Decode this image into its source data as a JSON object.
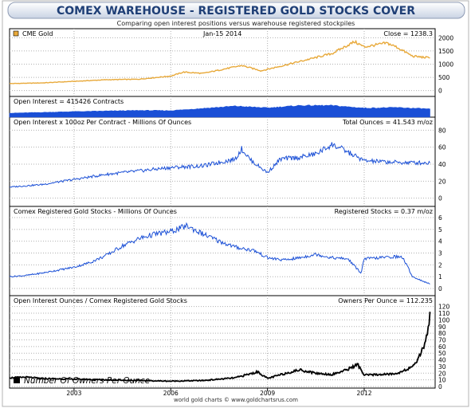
{
  "title": "COMEX WAREHOUSE - REGISTERED GOLD STOCKS COVER",
  "subtitle": "Comparing open interest positions versus warehouse registered stockpiles",
  "footer": "world gold charts © www.goldchartsrus.com",
  "chart_data": [
    {
      "type": "line",
      "legend_label": "CME Gold",
      "date_label": "Jan-15  2014",
      "readout": "Close = 1238.3",
      "ylim": [
        -100,
        2100
      ],
      "yticks": [
        0,
        500,
        1000,
        1500,
        2000
      ],
      "color": "#e8a93a",
      "x": [
        2001.0,
        2002.0,
        2003.0,
        2004.0,
        2005.0,
        2006.0,
        2006.4,
        2007.0,
        2008.2,
        2008.8,
        2009.5,
        2010.0,
        2010.5,
        2011.0,
        2011.7,
        2012.0,
        2012.7,
        2013.0,
        2013.5,
        2014.04
      ],
      "values": [
        265,
        290,
        350,
        410,
        430,
        550,
        700,
        650,
        950,
        750,
        950,
        1100,
        1250,
        1400,
        1850,
        1650,
        1800,
        1650,
        1300,
        1238
      ]
    },
    {
      "type": "area",
      "readout": "Open Interest = 415426 Contracts",
      "color": "#1a4fd6",
      "x": [
        2001.0,
        2003.0,
        2005.0,
        2006.0,
        2008.0,
        2009.0,
        2010.0,
        2011.0,
        2012.0,
        2013.0,
        2014.04
      ],
      "values": [
        200000,
        280000,
        340000,
        330000,
        560000,
        470000,
        590000,
        590000,
        460000,
        490000,
        415426
      ]
    },
    {
      "type": "line",
      "readout": "Open Interest x 100oz Per Contract - Millions Of Ounces",
      "total": "Total Ounces = 41.543 m/oz",
      "ylim": [
        -5,
        85
      ],
      "yticks": [
        0,
        20,
        40,
        60,
        80
      ],
      "color": "#1a4fd6",
      "x": [
        2001.0,
        2002.0,
        2003.0,
        2004.0,
        2005.0,
        2006.0,
        2007.0,
        2008.0,
        2008.2,
        2008.5,
        2009.0,
        2009.4,
        2010.0,
        2010.5,
        2011.0,
        2011.3,
        2011.6,
        2012.0,
        2013.0,
        2014.04
      ],
      "values": [
        13,
        16,
        22,
        28,
        32,
        36,
        38,
        46,
        58,
        44,
        30,
        46,
        48,
        52,
        63,
        58,
        52,
        44,
        42,
        41.5
      ]
    },
    {
      "type": "line",
      "readout": "Comex Registered Gold Stocks - Millions Of Ounces",
      "registered": "Registered Stocks = 0.37 m/oz",
      "ylim": [
        -0.2,
        6.2
      ],
      "yticks": [
        0,
        1,
        2,
        3,
        4,
        5,
        6
      ],
      "color": "#1a4fd6",
      "x": [
        2001.0,
        2001.5,
        2002.0,
        2003.0,
        2003.5,
        2004.0,
        2004.5,
        2005.0,
        2005.5,
        2006.0,
        2006.5,
        2007.0,
        2007.5,
        2008.0,
        2008.6,
        2009.0,
        2009.5,
        2010.0,
        2010.5,
        2011.0,
        2011.5,
        2011.9,
        2012.0,
        2012.5,
        2013.0,
        2013.2,
        2013.5,
        2014.04
      ],
      "values": [
        1.0,
        1.1,
        1.3,
        1.8,
        2.2,
        2.8,
        3.6,
        4.2,
        4.6,
        4.8,
        5.3,
        4.6,
        4.0,
        3.5,
        3.2,
        2.6,
        2.4,
        2.6,
        2.9,
        2.6,
        2.5,
        1.3,
        2.5,
        2.6,
        2.7,
        2.6,
        1.0,
        0.37
      ]
    },
    {
      "type": "line",
      "readout": "Open Interest Ounces / Comex Registered Gold Stocks",
      "owners": "Owners Per Ounce = 112.235",
      "series_label": "Number Of Owners Per Ounce",
      "ylim": [
        0,
        122
      ],
      "yticks": [
        0,
        10,
        20,
        30,
        40,
        50,
        60,
        70,
        80,
        90,
        100,
        110,
        120
      ],
      "color": "#000000",
      "x": [
        2001.0,
        2001.5,
        2002.0,
        2003.0,
        2004.0,
        2005.0,
        2006.0,
        2007.0,
        2008.0,
        2008.7,
        2009.0,
        2009.5,
        2010.0,
        2010.5,
        2011.0,
        2011.4,
        2011.8,
        2012.0,
        2012.5,
        2013.0,
        2013.3,
        2013.5,
        2013.7,
        2013.85,
        2014.0,
        2014.04
      ],
      "values": [
        13,
        14,
        12,
        11,
        10,
        9,
        8,
        9,
        13,
        22,
        12,
        19,
        25,
        20,
        18,
        24,
        33,
        17,
        18,
        19,
        26,
        28,
        45,
        60,
        90,
        112.2
      ]
    }
  ],
  "x_axis": {
    "range": [
      2001.0,
      2014.2
    ],
    "ticks": [
      2003,
      2006,
      2009,
      2012
    ],
    "tick_labels": [
      "2003",
      "2006",
      "2009",
      "2012"
    ]
  }
}
